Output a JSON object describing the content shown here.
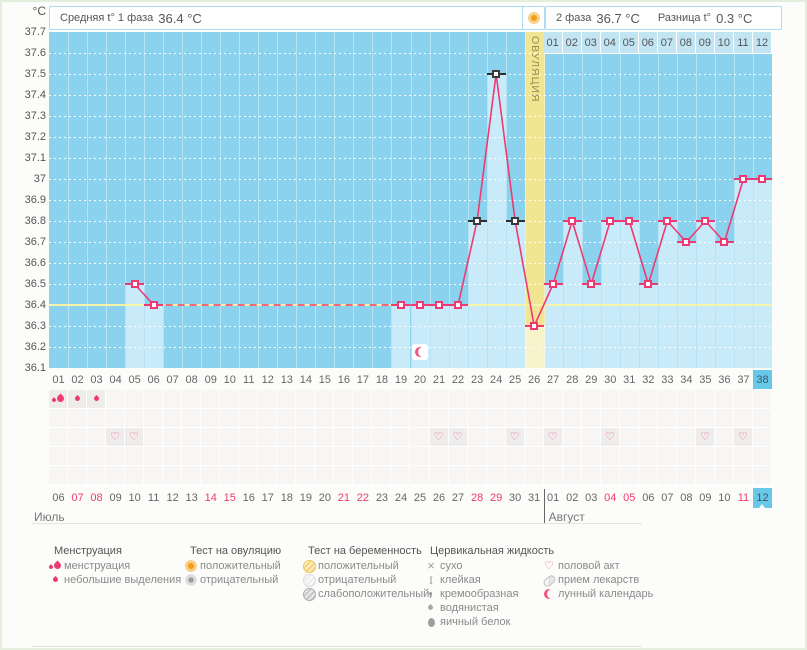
{
  "header": {
    "unit": "°C",
    "phase1": {
      "label": "Средняя t° 1 фаза",
      "value": "36.4 °C"
    },
    "phase2": {
      "label": "2 фаза",
      "value": "36.7 °C"
    },
    "diff": {
      "label": "Разница t°",
      "value": "0.3 °C"
    }
  },
  "chart_data": {
    "type": "line",
    "ylabel": "°C",
    "ylim": [
      36.1,
      37.7
    ],
    "baseline": 36.4,
    "phase1_avg": 36.4,
    "phase2_avg": 36.7,
    "phase_diff": 0.3,
    "y_ticks": [
      {
        "label": "37.7",
        "value": 37.7
      },
      {
        "label": "37.6",
        "value": 37.6
      },
      {
        "label": "37.5",
        "value": 37.5
      },
      {
        "label": "37.4",
        "value": 37.4
      },
      {
        "label": "37.3",
        "value": 37.3
      },
      {
        "label": "37.2",
        "value": 37.2
      },
      {
        "label": "37.1",
        "value": 37.1
      },
      {
        "label": "37",
        "value": 37.0
      },
      {
        "label": "36.9",
        "value": 36.9
      },
      {
        "label": "36.8",
        "value": 36.8
      },
      {
        "label": "36.7",
        "value": 36.7
      },
      {
        "label": "36.6",
        "value": 36.6
      },
      {
        "label": "36.5",
        "value": 36.5
      },
      {
        "label": "36.4",
        "value": 36.4
      },
      {
        "label": "36.3",
        "value": 36.3
      },
      {
        "label": "36.2",
        "value": 36.2
      },
      {
        "label": "36.1",
        "value": 36.1
      }
    ],
    "cycle_days": [
      "01",
      "02",
      "03",
      "04",
      "05",
      "06",
      "07",
      "08",
      "09",
      "10",
      "11",
      "12",
      "13",
      "14",
      "15",
      "16",
      "17",
      "18",
      "19",
      "20",
      "21",
      "22",
      "23",
      "24",
      "25",
      "26",
      "27",
      "28",
      "29",
      "30",
      "31",
      "32",
      "33",
      "34",
      "35",
      "36",
      "37",
      "38"
    ],
    "values": [
      null,
      null,
      null,
      null,
      36.5,
      36.4,
      null,
      null,
      null,
      null,
      null,
      null,
      null,
      null,
      null,
      null,
      null,
      null,
      36.4,
      36.4,
      36.4,
      36.4,
      36.8,
      37.5,
      36.8,
      36.3,
      36.5,
      36.8,
      36.5,
      36.8,
      36.8,
      36.5,
      36.8,
      36.7,
      36.8,
      36.7,
      37.0,
      37.0
    ],
    "excluded_days": [
      23,
      24,
      25
    ],
    "ovulation_day": 26,
    "ovulation_band_label": "ОВУЛЯЦИЯ",
    "selected_day": 38,
    "moon_day": 20,
    "august_header": [
      "01",
      "02",
      "03",
      "04",
      "05",
      "06",
      "07",
      "08",
      "09",
      "10",
      "11",
      "12"
    ],
    "line_color": "#EE3A72",
    "plot_bg": "#8BD2EF",
    "bar_color": "#C9EBF9",
    "band_color": "#F1E593",
    "band_color_light": "#F9F3CB",
    "baseline_color": "#F7F3A8",
    "selected_color": "#67C8E8"
  },
  "day_rows": {
    "dates": [
      {
        "label": "06",
        "weekend": false
      },
      {
        "label": "07",
        "weekend": true
      },
      {
        "label": "08",
        "weekend": true
      },
      {
        "label": "09",
        "weekend": false
      },
      {
        "label": "10",
        "weekend": false
      },
      {
        "label": "11",
        "weekend": false
      },
      {
        "label": "12",
        "weekend": false
      },
      {
        "label": "13",
        "weekend": false
      },
      {
        "label": "14",
        "weekend": true
      },
      {
        "label": "15",
        "weekend": true
      },
      {
        "label": "16",
        "weekend": false
      },
      {
        "label": "17",
        "weekend": false
      },
      {
        "label": "18",
        "weekend": false
      },
      {
        "label": "19",
        "weekend": false
      },
      {
        "label": "20",
        "weekend": false
      },
      {
        "label": "21",
        "weekend": true
      },
      {
        "label": "22",
        "weekend": true
      },
      {
        "label": "23",
        "weekend": false
      },
      {
        "label": "24",
        "weekend": false
      },
      {
        "label": "25",
        "weekend": false
      },
      {
        "label": "26",
        "weekend": false
      },
      {
        "label": "27",
        "weekend": false
      },
      {
        "label": "28",
        "weekend": true
      },
      {
        "label": "29",
        "weekend": true
      },
      {
        "label": "30",
        "weekend": false
      },
      {
        "label": "31",
        "weekend": false
      },
      {
        "label": "01",
        "weekend": false
      },
      {
        "label": "02",
        "weekend": false
      },
      {
        "label": "03",
        "weekend": false
      },
      {
        "label": "04",
        "weekend": true
      },
      {
        "label": "05",
        "weekend": true
      },
      {
        "label": "06",
        "weekend": false
      },
      {
        "label": "07",
        "weekend": false
      },
      {
        "label": "08",
        "weekend": false
      },
      {
        "label": "09",
        "weekend": false
      },
      {
        "label": "10",
        "weekend": false
      },
      {
        "label": "11",
        "weekend": true
      },
      {
        "label": "12",
        "weekend": true
      }
    ],
    "months": [
      {
        "label": "Июль"
      },
      {
        "label": "Август"
      }
    ],
    "month_divider_after_day": 26
  },
  "symbol_grid": {
    "rows": [
      {
        "name": "menstruation-row",
        "cells": {
          "1": "menstruation-icon",
          "2": "spotting-icon",
          "3": "spotting-icon"
        }
      },
      {
        "name": "ovulation-test-row",
        "cells": {}
      },
      {
        "name": "intercourse-row",
        "cells": {
          "4": "intercourse-icon",
          "5": "intercourse-icon",
          "21": "intercourse-icon",
          "22": "intercourse-icon",
          "25": "intercourse-icon",
          "27": "intercourse-icon",
          "30": "intercourse-icon",
          "35": "intercourse-icon",
          "37": "intercourse-icon"
        }
      },
      {
        "name": "pregnancy-test-row",
        "cells": {}
      },
      {
        "name": "cervical-fluid-row",
        "cells": {}
      }
    ]
  },
  "legend": {
    "groups": [
      {
        "title": "Менструация",
        "items": [
          {
            "icon": "menstruation-icon",
            "label": "менструация"
          },
          {
            "icon": "spotting-icon",
            "label": "небольшие выделения"
          }
        ]
      },
      {
        "title": "Тест на овуляцию",
        "items": [
          {
            "icon": "ovulation-positive-icon",
            "label": "положительный"
          },
          {
            "icon": "ovulation-negative-icon",
            "label": "отрицательный"
          }
        ]
      },
      {
        "title": "Тест на беременность",
        "items": [
          {
            "icon": "pregnancy-positive-icon",
            "label": "положительный"
          },
          {
            "icon": "pregnancy-negative-icon",
            "label": "отрицательный"
          },
          {
            "icon": "pregnancy-weak-icon",
            "label": "слабоположительный"
          }
        ]
      },
      {
        "title": "Цервикальная жидкость",
        "items": [
          {
            "icon": "dry-icon",
            "label": "сухо"
          },
          {
            "icon": "sticky-icon",
            "label": "клейкая"
          },
          {
            "icon": "creamy-icon",
            "label": "кремообразная"
          },
          {
            "icon": "watery-icon",
            "label": "водянистая"
          },
          {
            "icon": "eggwhite-icon",
            "label": "яичный белок"
          }
        ]
      },
      {
        "title": "",
        "items": [
          {
            "icon": "intercourse-icon",
            "label": "половой акт"
          },
          {
            "icon": "medication-icon",
            "label": "прием лекарств"
          },
          {
            "icon": "moon-icon",
            "label": "лунный календарь"
          }
        ]
      }
    ]
  }
}
